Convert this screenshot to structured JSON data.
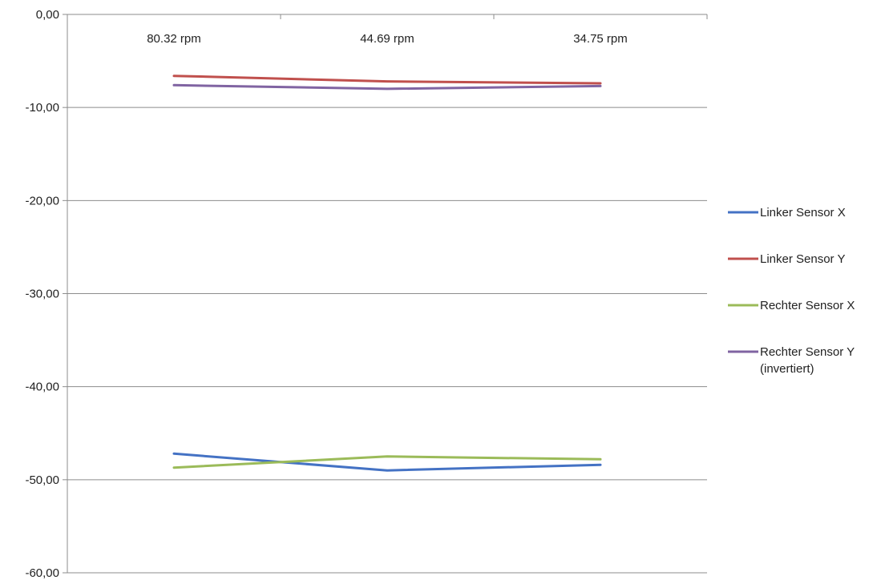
{
  "chart_data": {
    "type": "line",
    "title": "",
    "xlabel": "",
    "ylabel": "",
    "ylim": [
      -60,
      0
    ],
    "ytick_values": [
      0,
      -10,
      -20,
      -30,
      -40,
      -50,
      -60
    ],
    "ytick_labels": [
      "0,00",
      "-10,00",
      "-20,00",
      "-30,00",
      "-40,00",
      "-50,00",
      "-60,00"
    ],
    "categories": [
      "80.32 rpm",
      "44.69 rpm",
      "34.75 rpm"
    ],
    "category_axis_position": "top",
    "grid": "horizontal",
    "legend_position": "right",
    "series": [
      {
        "name": "Linker Sensor X",
        "color": "#4472c4",
        "values": [
          -47.2,
          -49.0,
          -48.4
        ]
      },
      {
        "name": "Linker Sensor Y",
        "color": "#c0504d",
        "values": [
          -6.6,
          -7.2,
          -7.4
        ]
      },
      {
        "name": "Rechter Sensor X",
        "color": "#9bbb59",
        "values": [
          -48.7,
          -47.5,
          -47.8
        ]
      },
      {
        "name": "Rechter Sensor Y (invertiert)",
        "color": "#8064a2",
        "values": [
          -7.6,
          -8.0,
          -7.7
        ]
      }
    ]
  }
}
